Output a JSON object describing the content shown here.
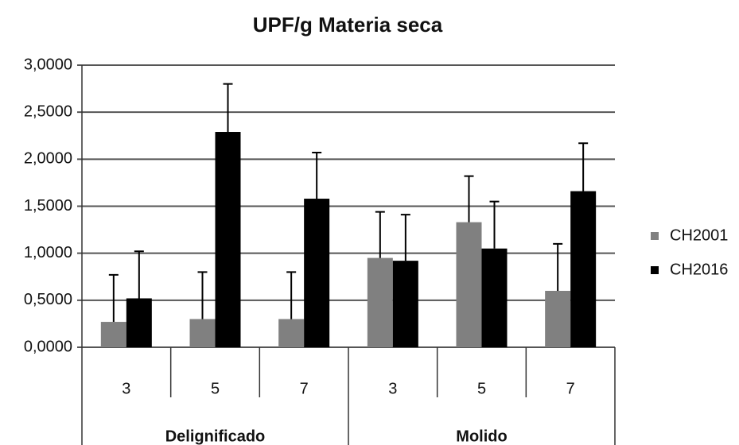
{
  "chart_data": {
    "type": "bar",
    "title": "UPF/g Materia seca",
    "category_groups": [
      {
        "name": "Delignificado",
        "categories": [
          "3",
          "5",
          "7"
        ]
      },
      {
        "name": "Molido",
        "categories": [
          "3",
          "5",
          "7"
        ]
      }
    ],
    "series": [
      {
        "name": "CH2001",
        "color": "#808080",
        "values": [
          0.27,
          0.3,
          0.3,
          0.95,
          1.33,
          0.6
        ],
        "errors": [
          0.5,
          0.5,
          0.5,
          0.49,
          0.49,
          0.5
        ]
      },
      {
        "name": "CH2016",
        "color": "#000000",
        "values": [
          0.52,
          2.29,
          1.58,
          0.92,
          1.05,
          1.66
        ],
        "errors": [
          0.5,
          0.51,
          0.49,
          0.49,
          0.5,
          0.51
        ]
      }
    ],
    "ylim": [
      0,
      3
    ],
    "yticks": [
      {
        "value": 0,
        "label": "0,0000"
      },
      {
        "value": 0.5,
        "label": "0,5000"
      },
      {
        "value": 1,
        "label": "1,0000"
      },
      {
        "value": 1.5,
        "label": "1,5000"
      },
      {
        "value": 2,
        "label": "2,0000"
      },
      {
        "value": 2.5,
        "label": "2,5000"
      },
      {
        "value": 3,
        "label": "3,0000"
      }
    ],
    "grid": true,
    "legend": "right"
  }
}
